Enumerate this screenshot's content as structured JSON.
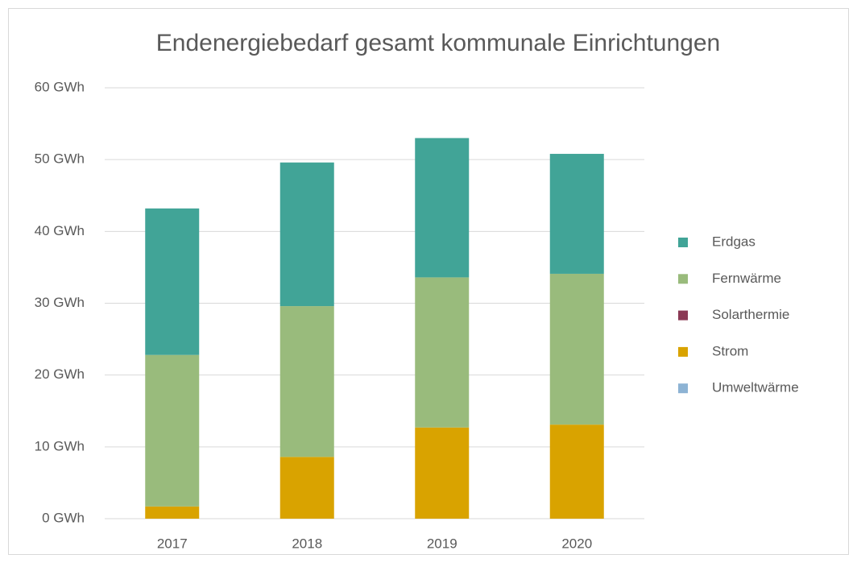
{
  "chart_data": {
    "type": "bar",
    "stacked": true,
    "title": "Endenergiebedarf gesamt kommunale Einrichtungen",
    "categories": [
      "2017",
      "2018",
      "2019",
      "2020"
    ],
    "series": [
      {
        "name": "Erdgas",
        "color": "#41a497",
        "values": [
          20.4,
          20.0,
          19.4,
          16.7
        ]
      },
      {
        "name": "Fernwärme",
        "color": "#99bb7c",
        "values": [
          21.1,
          21.0,
          20.9,
          21.0
        ]
      },
      {
        "name": "Solarthermie",
        "color": "#8b3a55",
        "values": [
          0,
          0,
          0,
          0
        ]
      },
      {
        "name": "Strom",
        "color": "#d9a300",
        "values": [
          1.7,
          8.6,
          12.7,
          13.1
        ]
      },
      {
        "name": "Umweltwärme",
        "color": "#8db3d4",
        "values": [
          0,
          0,
          0,
          0
        ]
      }
    ],
    "ylim": [
      0,
      60
    ],
    "yticks": [
      {
        "value": 0,
        "label": "0 GWh"
      },
      {
        "value": 10,
        "label": "10 GWh"
      },
      {
        "value": 20,
        "label": "20 GWh"
      },
      {
        "value": 30,
        "label": "30 GWh"
      },
      {
        "value": 40,
        "label": "40 GWh"
      },
      {
        "value": 50,
        "label": "50 GWh"
      },
      {
        "value": 60,
        "label": "60 GWh"
      }
    ],
    "grid": true,
    "legend": "right"
  }
}
